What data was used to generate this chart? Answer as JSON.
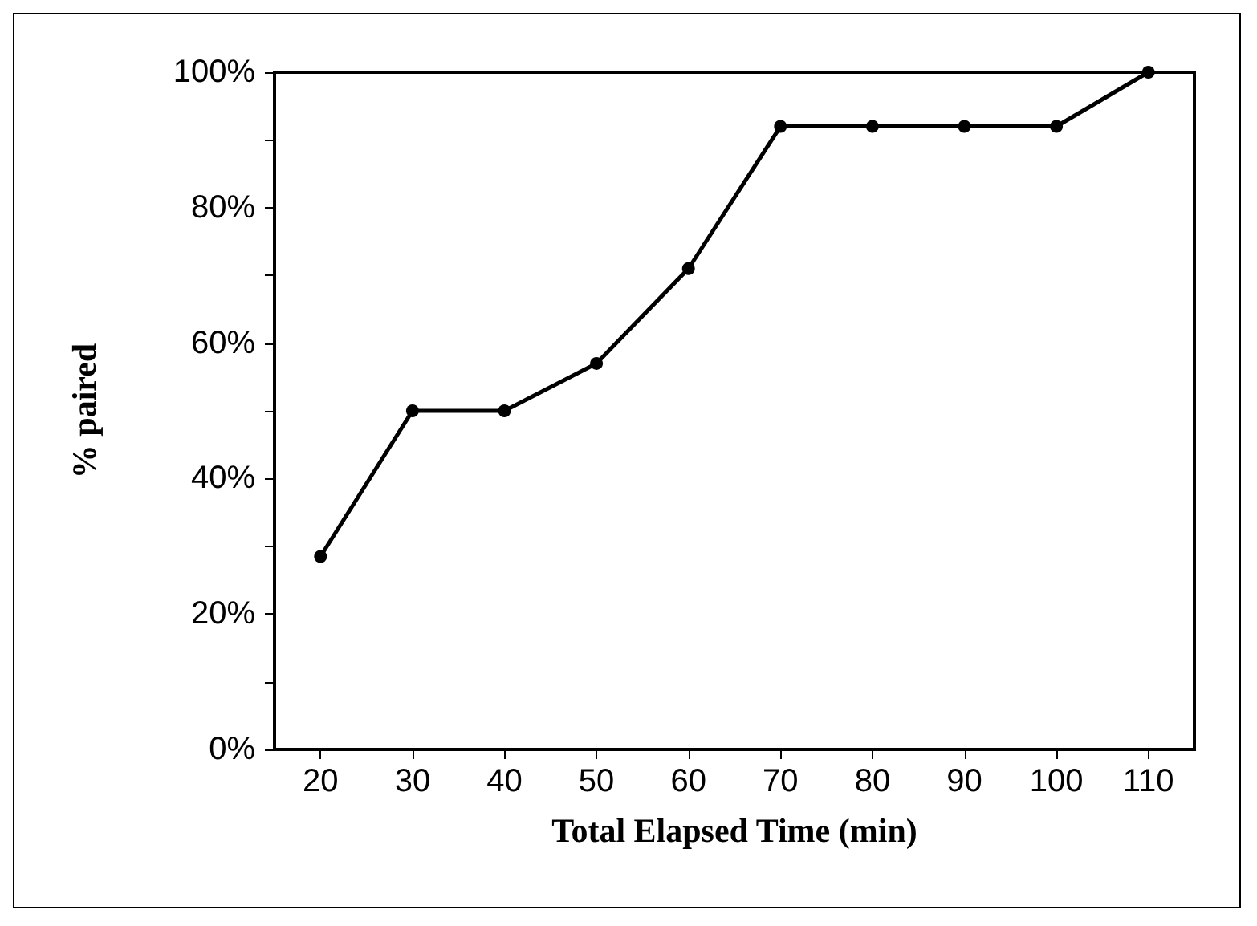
{
  "chart_data": {
    "type": "line",
    "xlabel": "Total Elapsed Time (min)",
    "ylabel": "% paired",
    "x": [
      20,
      30,
      40,
      50,
      60,
      70,
      80,
      90,
      100,
      110
    ],
    "series": [
      {
        "color": "#000000",
        "values": [
          28.5,
          50,
          50,
          57,
          71,
          92,
          92,
          92,
          92,
          100
        ]
      }
    ],
    "xlim": [
      15,
      115
    ],
    "xticks": [
      20,
      30,
      40,
      50,
      60,
      70,
      80,
      90,
      100,
      110
    ],
    "ylim": [
      0,
      100
    ],
    "yticks": [
      {
        "value": 0,
        "label": "0%"
      },
      {
        "value": 10,
        "label": null
      },
      {
        "value": 20,
        "label": "20%"
      },
      {
        "value": 30,
        "label": null
      },
      {
        "value": 40,
        "label": "40%"
      },
      {
        "value": 50,
        "label": null
      },
      {
        "value": 60,
        "label": "60%"
      },
      {
        "value": 70,
        "label": null
      },
      {
        "value": 80,
        "label": "80%"
      },
      {
        "value": 90,
        "label": null
      },
      {
        "value": 100,
        "label": "100%"
      }
    ],
    "marker": "circle",
    "line_style": "solid"
  }
}
